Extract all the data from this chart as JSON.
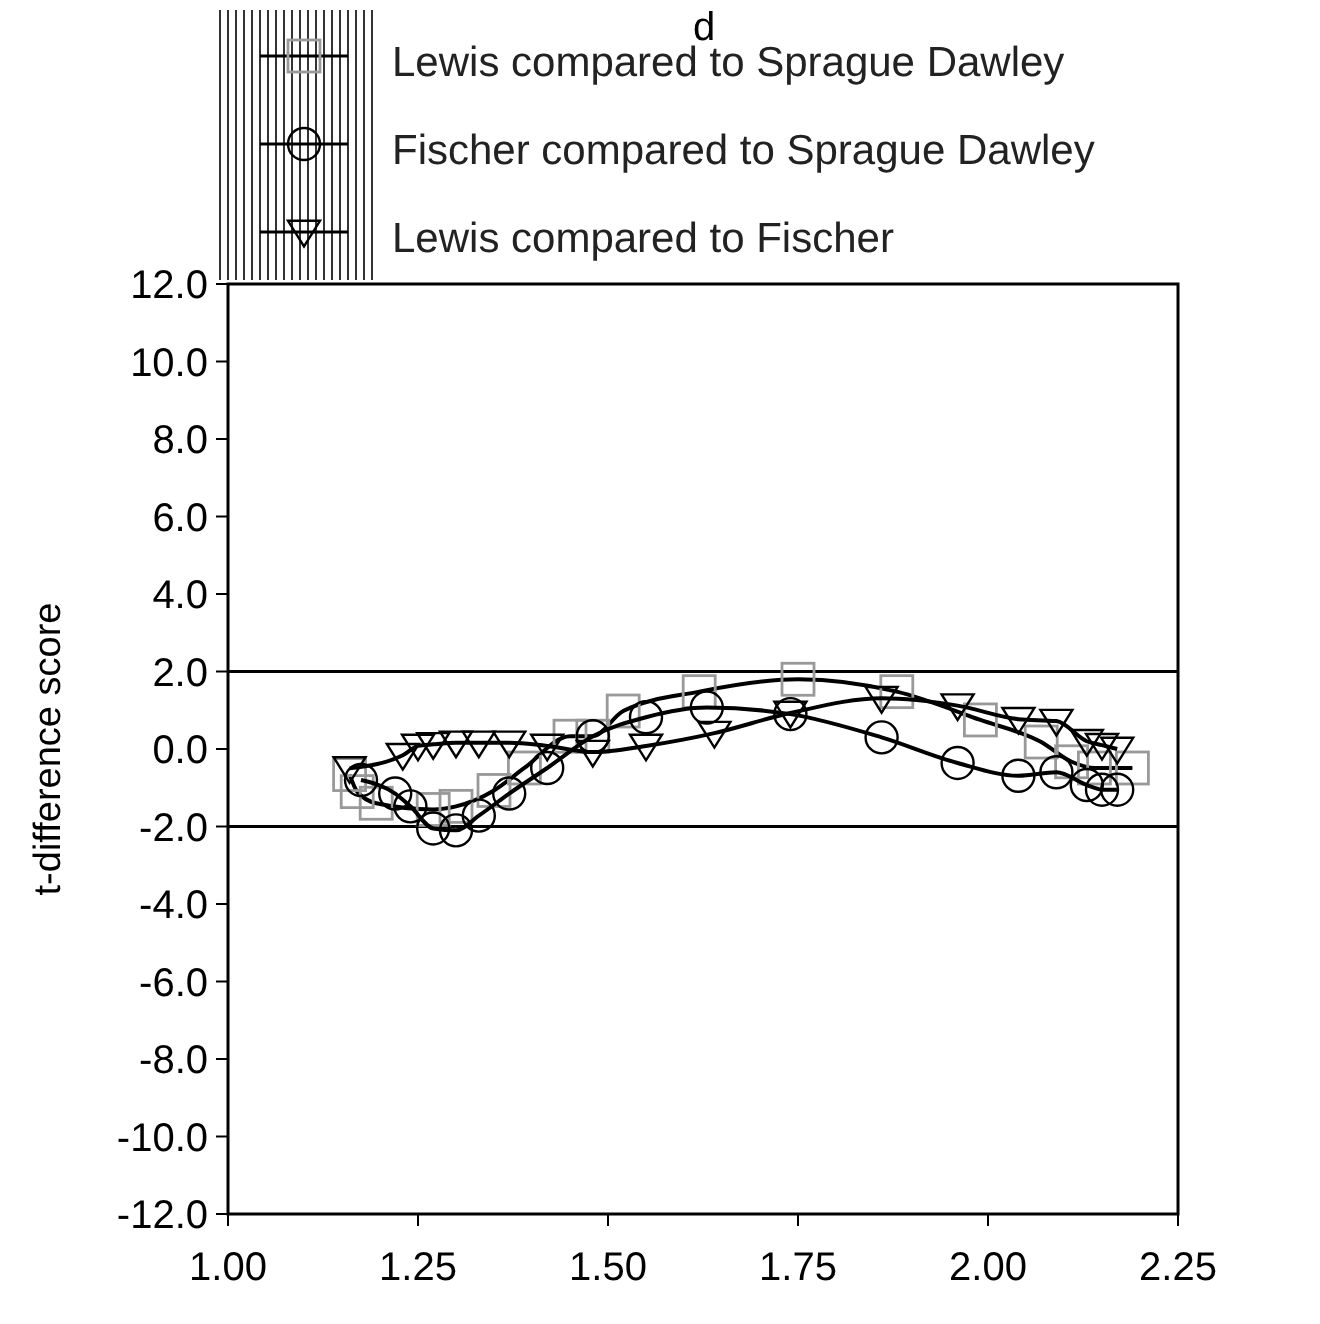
{
  "chart_data": {
    "type": "line",
    "title": "d",
    "ylabel": "t-difference score",
    "xlim": [
      1.0,
      2.25
    ],
    "xticks": [
      {
        "value": 1,
        "label": "1.00"
      },
      {
        "value": 1.25,
        "label": "1.25"
      },
      {
        "value": 1.5,
        "label": "1.50"
      },
      {
        "value": 1.75,
        "label": "1.75"
      },
      {
        "value": 2,
        "label": "2.00"
      },
      {
        "value": 2.25,
        "label": "2.25"
      }
    ],
    "ylim": [
      -12,
      12
    ],
    "yticks": [
      {
        "value": -12,
        "label": "-12.0"
      },
      {
        "value": -10,
        "label": "-10.0"
      },
      {
        "value": -8,
        "label": "-8.0"
      },
      {
        "value": -6,
        "label": "-6.0"
      },
      {
        "value": -4,
        "label": "-4.0"
      },
      {
        "value": -2,
        "label": "-2.0"
      },
      {
        "value": 0,
        "label": "0.0"
      },
      {
        "value": 2,
        "label": "2.0"
      },
      {
        "value": 4,
        "label": "4.0"
      },
      {
        "value": 6,
        "label": "6.0"
      },
      {
        "value": 8,
        "label": "8.0"
      },
      {
        "value": 10,
        "label": "10.0"
      },
      {
        "value": 12,
        "label": "12.0"
      }
    ],
    "grid": false,
    "legend": "top left",
    "ref_lines": [
      {
        "axis": "y",
        "value": 2,
        "color": "#000000"
      },
      {
        "axis": "y",
        "value": -2,
        "color": "#000000"
      }
    ],
    "series": [
      {
        "name": "Lewis compared to Sprague Dawley",
        "color": "#000000",
        "marker": "square",
        "x": [
          1.16,
          1.17,
          1.195,
          1.27,
          1.3,
          1.35,
          1.39,
          1.45,
          1.48,
          1.52,
          1.62,
          1.75,
          1.88,
          1.99,
          2.07,
          2.11,
          2.14,
          2.19
        ],
        "values": [
          -0.66,
          -1.1,
          -1.4,
          -1.56,
          -1.48,
          -1.07,
          -0.49,
          0.33,
          0.33,
          0.98,
          1.48,
          1.8,
          1.48,
          0.75,
          0.18,
          -0.33,
          -0.49,
          -0.49
        ]
      },
      {
        "name": "Fischer compared to Sprague Dawley",
        "color": "#000000",
        "marker": "circle",
        "x": [
          1.175,
          1.22,
          1.24,
          1.27,
          1.3,
          1.33,
          1.37,
          1.42,
          1.48,
          1.55,
          1.63,
          1.74,
          1.86,
          1.96,
          2.04,
          2.09,
          2.13,
          2.15,
          2.17
        ],
        "values": [
          -0.8,
          -1.15,
          -1.48,
          -2.05,
          -2.1,
          -1.72,
          -1.15,
          -0.49,
          0.33,
          0.82,
          1.07,
          0.9,
          0.3,
          -0.36,
          -0.69,
          -0.6,
          -0.93,
          -1.05,
          -1.05
        ]
      },
      {
        "name": "Lewis compared to Fischer",
        "color": "#000000",
        "marker": "triangle",
        "x": [
          1.16,
          1.23,
          1.25,
          1.27,
          1.3,
          1.33,
          1.37,
          1.42,
          1.48,
          1.55,
          1.64,
          1.74,
          1.86,
          1.96,
          2.04,
          2.09,
          2.13,
          2.15,
          2.17
        ],
        "values": [
          -0.5,
          -0.16,
          0.08,
          0.12,
          0.16,
          0.16,
          0.16,
          0.08,
          -0.08,
          0.08,
          0.41,
          0.93,
          1.31,
          1.12,
          0.77,
          0.72,
          0.2,
          0.1,
          0.0
        ]
      }
    ]
  }
}
